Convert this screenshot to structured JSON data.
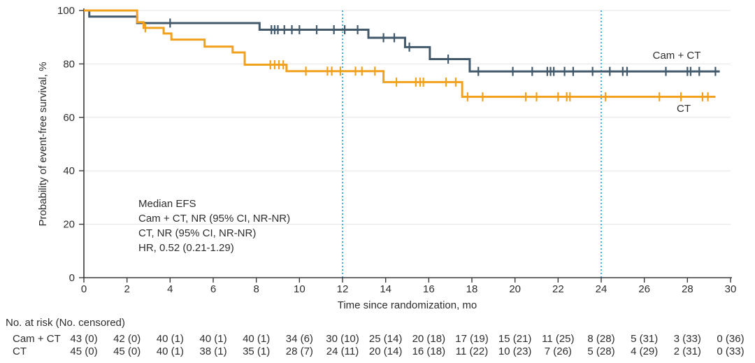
{
  "figure_colors": {
    "camct_line": "#41596b",
    "ct_line": "#f1a11e",
    "reference_line": "#45b4e6",
    "gridline": "#e4e4e4",
    "axis": "#3a3a3a",
    "text": "#2d2d2d"
  },
  "chart_data": {
    "type": "line",
    "subtype": "kaplan-meier-step",
    "title": "",
    "xlabel": "Time since randomization, mo",
    "ylabel": "Probability of event-free survival, %",
    "xlim": [
      0,
      30
    ],
    "ylim": [
      0,
      100
    ],
    "x_ticks": [
      0,
      2,
      4,
      6,
      8,
      10,
      12,
      14,
      16,
      18,
      20,
      22,
      24,
      26,
      28,
      30
    ],
    "y_ticks": [
      100,
      80,
      60,
      40,
      20,
      0
    ],
    "grid": true,
    "legend_position": "inline-end-labels",
    "reference_lines_x": [
      12,
      24
    ],
    "series": [
      {
        "name": "Cam + CT",
        "color": "#41596b",
        "steps": [
          [
            0,
            100
          ],
          [
            0.25,
            97.7
          ],
          [
            2.47,
            95.3
          ],
          [
            8.15,
            92.8
          ],
          [
            13.2,
            89.8
          ],
          [
            14.9,
            86.3
          ],
          [
            16.05,
            81.8
          ],
          [
            17.9,
            77.2
          ]
        ],
        "end_time": 29.5,
        "censor_times": [
          4.0,
          8.7,
          8.85,
          9.0,
          9.3,
          9.65,
          10.0,
          10.8,
          11.6,
          12.1,
          12.7,
          13.9,
          14.4,
          15.1,
          16.9,
          18.3,
          19.9,
          20.8,
          21.5,
          21.65,
          21.8,
          22.3,
          22.7,
          23.6,
          24.4,
          25.0,
          25.2,
          27.0,
          28.0,
          28.15,
          28.55,
          29.3
        ]
      },
      {
        "name": "CT",
        "color": "#f1a11e",
        "steps": [
          [
            0,
            100
          ],
          [
            2.47,
            95.6
          ],
          [
            2.77,
            93.5
          ],
          [
            3.7,
            91.4
          ],
          [
            4.06,
            89.1
          ],
          [
            5.6,
            86.5
          ],
          [
            6.9,
            84.3
          ],
          [
            7.46,
            79.7
          ],
          [
            9.4,
            77.3
          ],
          [
            13.9,
            73.2
          ],
          [
            17.55,
            67.7
          ]
        ],
        "end_time": 29.3,
        "censor_times": [
          2.85,
          8.65,
          8.85,
          9.05,
          9.25,
          10.3,
          11.3,
          11.5,
          11.9,
          12.6,
          12.9,
          13.5,
          14.5,
          15.4,
          15.6,
          15.75,
          16.8,
          17.25,
          17.8,
          18.5,
          20.5,
          21.0,
          22.0,
          22.4,
          22.55,
          24.2,
          26.7,
          27.7,
          28.7,
          28.95
        ]
      }
    ],
    "annotation": [
      "Median EFS",
      "Cam + CT, NR (95% CI, NR-NR)",
      "CT, NR (95% CI, NR-NR)",
      "HR, 0.52 (0.21-1.29)"
    ]
  },
  "risk_table": {
    "header": "No. at risk (No. censored)",
    "times": [
      0,
      2,
      4,
      6,
      8,
      10,
      12,
      14,
      16,
      18,
      20,
      22,
      24,
      26,
      28,
      30
    ],
    "rows": [
      {
        "label": "Cam + CT",
        "values": [
          "43 (0)",
          "42 (0)",
          "40 (1)",
          "40 (1)",
          "40 (1)",
          "34 (6)",
          "30 (10)",
          "25 (14)",
          "20 (18)",
          "17 (19)",
          "15 (21)",
          "11 (25)",
          "8 (28)",
          "5 (31)",
          "3 (33)",
          "0 (36)"
        ]
      },
      {
        "label": "CT",
        "values": [
          "45 (0)",
          "45 (0)",
          "40 (1)",
          "38 (1)",
          "35 (1)",
          "28 (7)",
          "24 (11)",
          "20 (14)",
          "16 (18)",
          "11 (22)",
          "10 (23)",
          "7 (26)",
          "5 (28)",
          "4 (29)",
          "2 (31)",
          "0 (33)"
        ]
      }
    ]
  }
}
